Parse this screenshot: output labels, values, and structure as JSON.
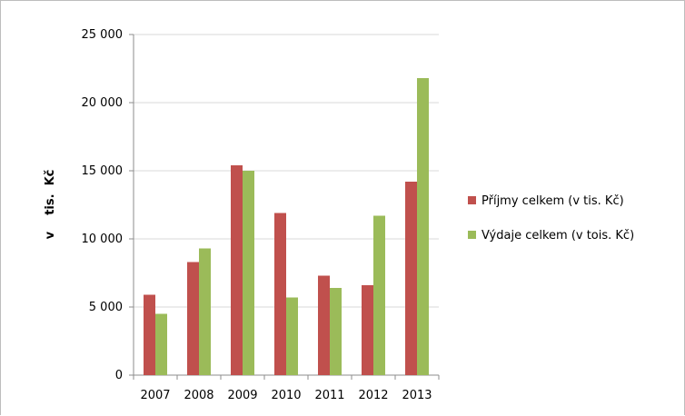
{
  "chart_data": {
    "type": "bar",
    "title": "",
    "xlabel": "",
    "ylabel": "v    tis.  Kč",
    "categories": [
      "2007",
      "2008",
      "2009",
      "2010",
      "2011",
      "2012",
      "2013"
    ],
    "series": [
      {
        "name": "Příjmy celkem (v tis. Kč)",
        "color": "#c0504d",
        "values": [
          5900,
          8300,
          15400,
          11900,
          7300,
          6600,
          14200
        ]
      },
      {
        "name": "Výdaje celkem (v tois. Kč)",
        "color": "#9bbb59",
        "values": [
          4500,
          9300,
          15000,
          5700,
          6400,
          11700,
          21800
        ]
      }
    ],
    "ylim": [
      0,
      25000
    ],
    "yticks": [
      0,
      5000,
      10000,
      15000,
      20000,
      25000
    ],
    "ytick_labels": [
      "0",
      "5 000",
      "10 000",
      "15 000",
      "20 000",
      "25 000"
    ],
    "grid": true,
    "legend_position": "right",
    "colors": {
      "grid": "#d9d9d9",
      "axis": "#8c8c8c"
    }
  }
}
